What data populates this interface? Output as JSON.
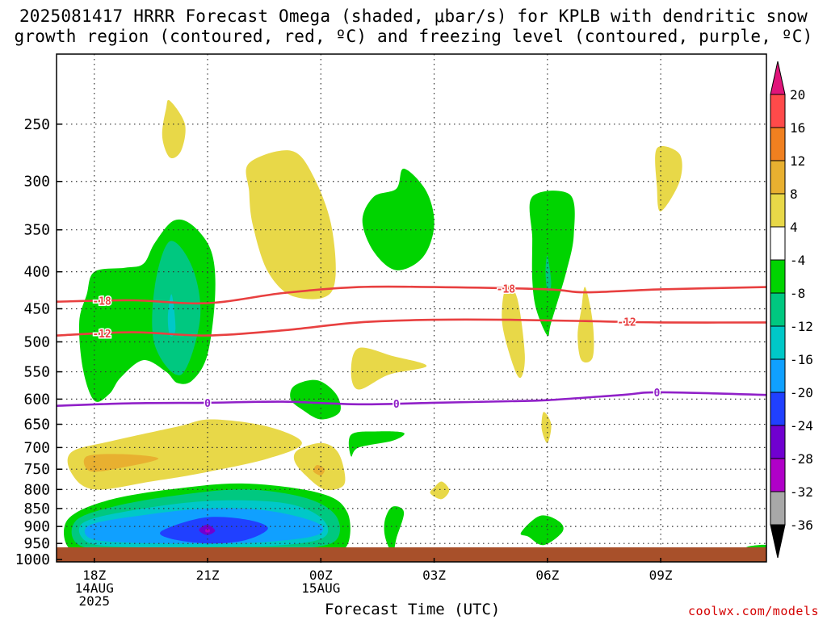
{
  "title_line1": "2025081417 HRRR Forecast Omega (shaded, μbar/s) for KPLB with dendritic snow",
  "title_line2": "growth region (contoured, red, ºC) and freezing level (contoured, purple, ºC)",
  "credit": "coolwx.com/models",
  "chart_data": {
    "type": "heatmap",
    "xlabel": "Forecast Time (UTC)",
    "ylabel": "",
    "y_log": true,
    "x_ticks": [
      {
        "hour": 18,
        "labels": [
          "18Z",
          "14AUG",
          "2025"
        ]
      },
      {
        "hour": 21,
        "labels": [
          "21Z"
        ]
      },
      {
        "hour": 24,
        "labels": [
          "00Z",
          "15AUG"
        ]
      },
      {
        "hour": 27,
        "labels": [
          "03Z"
        ]
      },
      {
        "hour": 30,
        "labels": [
          "06Z"
        ]
      },
      {
        "hour": 33,
        "labels": [
          "09Z"
        ]
      }
    ],
    "xlim": [
      17,
      35.8
    ],
    "y_ticks": [
      250,
      300,
      350,
      400,
      450,
      500,
      550,
      600,
      650,
      700,
      750,
      800,
      850,
      900,
      950,
      1000
    ],
    "ylim": [
      200,
      1010
    ],
    "colorbar": {
      "labels": [
        "20",
        "16",
        "12",
        "8",
        "4",
        "-4",
        "-8",
        "-12",
        "-16",
        "-20",
        "-24",
        "-28",
        "-32",
        "-36"
      ],
      "colors": [
        "#ff4a4a",
        "#f08020",
        "#e8b030",
        "#e8d848",
        "#ffffff",
        "#00d400",
        "#00c880",
        "#00c8c8",
        "#10a0ff",
        "#2040ff",
        "#7000d0",
        "#b000c8",
        "#a8a8a8"
      ],
      "top_arrow_color": "#e0147a",
      "bottom_arrow_color": "#000000"
    },
    "contours": [
      {
        "name": "-18",
        "color": "#e84040",
        "points": [
          [
            17,
            440
          ],
          [
            19,
            438
          ],
          [
            21,
            442
          ],
          [
            23,
            428
          ],
          [
            25,
            420
          ],
          [
            27,
            420
          ],
          [
            30,
            423
          ],
          [
            31,
            427
          ],
          [
            33,
            423
          ],
          [
            35.8,
            420
          ]
        ]
      },
      {
        "name": "-12",
        "color": "#e84040",
        "points": [
          [
            17,
            490
          ],
          [
            19,
            485
          ],
          [
            21,
            490
          ],
          [
            23,
            482
          ],
          [
            25,
            470
          ],
          [
            27,
            466
          ],
          [
            29,
            466
          ],
          [
            31,
            468
          ],
          [
            33,
            470
          ],
          [
            35.8,
            470
          ]
        ]
      },
      {
        "name": "0",
        "color": "#9020c8",
        "points": [
          [
            17,
            613
          ],
          [
            19,
            608
          ],
          [
            21,
            607
          ],
          [
            23,
            605
          ],
          [
            25,
            610
          ],
          [
            27,
            607
          ],
          [
            29,
            604
          ],
          [
            30,
            602
          ],
          [
            32,
            592
          ],
          [
            33,
            587
          ],
          [
            35.8,
            592
          ]
        ]
      }
    ],
    "omega_regions": [
      {
        "kind": "up",
        "color": "#00d400",
        "points": [
          [
            18.0,
            603
          ],
          [
            17.7,
            545
          ],
          [
            17.6,
            470
          ],
          [
            17.8,
            430
          ],
          [
            18.0,
            400
          ],
          [
            18.8,
            395
          ],
          [
            19.3,
            390
          ],
          [
            19.6,
            365
          ],
          [
            20.1,
            340
          ],
          [
            20.6,
            345
          ],
          [
            21.1,
            375
          ],
          [
            21.2,
            430
          ],
          [
            21.0,
            520
          ],
          [
            20.6,
            565
          ],
          [
            20.2,
            570
          ],
          [
            19.9,
            550
          ],
          [
            19.3,
            530
          ],
          [
            18.7,
            560
          ],
          [
            18.4,
            590
          ]
        ]
      },
      {
        "kind": "up",
        "color": "#00c880",
        "points": [
          [
            20.0,
            363
          ],
          [
            20.6,
            395
          ],
          [
            20.8,
            465
          ],
          [
            20.3,
            555
          ],
          [
            19.6,
            505
          ],
          [
            19.6,
            420
          ]
        ]
      },
      {
        "kind": "up",
        "color": "#00c8c8",
        "points": [
          [
            20.05,
            430
          ],
          [
            20.15,
            480
          ],
          [
            20.0,
            490
          ],
          [
            19.95,
            460
          ]
        ]
      },
      {
        "kind": "down",
        "color": "#e8d848",
        "points": [
          [
            20.0,
            232
          ],
          [
            20.4,
            250
          ],
          [
            20.3,
            272
          ],
          [
            20.0,
            278
          ],
          [
            19.8,
            260
          ],
          [
            19.9,
            238
          ]
        ]
      },
      {
        "kind": "down",
        "color": "#e8d848",
        "points": [
          [
            22.1,
            283
          ],
          [
            23.2,
            272
          ],
          [
            23.8,
            295
          ],
          [
            24.3,
            350
          ],
          [
            24.3,
            425
          ],
          [
            23.3,
            433
          ],
          [
            22.6,
            400
          ],
          [
            22.2,
            345
          ],
          [
            22.1,
            310
          ]
        ]
      },
      {
        "kind": "up",
        "color": "#00d400",
        "points": [
          [
            26.0,
            307
          ],
          [
            26.2,
            288
          ],
          [
            26.8,
            310
          ],
          [
            27.0,
            345
          ],
          [
            26.7,
            382
          ],
          [
            26.0,
            398
          ],
          [
            25.4,
            375
          ],
          [
            25.1,
            340
          ],
          [
            25.4,
            315
          ]
        ]
      },
      {
        "kind": "down",
        "color": "#e8d848",
        "points": [
          [
            25.0,
            510
          ],
          [
            25.9,
            523
          ],
          [
            26.8,
            540
          ],
          [
            25.8,
            555
          ],
          [
            25.0,
            582
          ],
          [
            24.8,
            550
          ]
        ]
      },
      {
        "kind": "up",
        "color": "#00d400",
        "points": [
          [
            23.3,
            575
          ],
          [
            23.9,
            565
          ],
          [
            24.4,
            590
          ],
          [
            24.5,
            625
          ],
          [
            24.0,
            640
          ],
          [
            23.5,
            620
          ],
          [
            23.2,
            600
          ]
        ]
      },
      {
        "kind": "up",
        "color": "#00d400",
        "points": [
          [
            24.8,
            672
          ],
          [
            25.5,
            665
          ],
          [
            26.2,
            668
          ],
          [
            25.9,
            685
          ],
          [
            25.0,
            700
          ],
          [
            24.8,
            720
          ]
        ]
      },
      {
        "kind": "down",
        "color": "#e8d848",
        "points": [
          [
            27.0,
            795
          ],
          [
            27.2,
            780
          ],
          [
            27.4,
            802
          ],
          [
            27.2,
            825
          ],
          [
            26.9,
            810
          ]
        ]
      },
      {
        "kind": "up",
        "color": "#00d400",
        "points": [
          [
            25.9,
            845
          ],
          [
            26.2,
            860
          ],
          [
            26.0,
            935
          ],
          [
            25.9,
            980
          ],
          [
            25.7,
            930
          ],
          [
            25.7,
            880
          ]
        ]
      },
      {
        "kind": "up",
        "color": "#00d400",
        "points": [
          [
            29.6,
            315
          ],
          [
            30.6,
            313
          ],
          [
            30.7,
            355
          ],
          [
            30.5,
            400
          ],
          [
            30.1,
            470
          ],
          [
            30.0,
            490
          ],
          [
            29.7,
            450
          ],
          [
            29.6,
            410
          ],
          [
            29.6,
            360
          ]
        ]
      },
      {
        "kind": "up",
        "color": "#00c880",
        "points": [
          [
            30.0,
            380
          ],
          [
            30.1,
            415
          ],
          [
            30.0,
            425
          ],
          [
            29.95,
            400
          ]
        ]
      },
      {
        "kind": "down",
        "color": "#e8d848",
        "points": [
          [
            28.9,
            420
          ],
          [
            29.2,
            435
          ],
          [
            29.4,
            520
          ],
          [
            29.3,
            560
          ],
          [
            29.1,
            540
          ],
          [
            28.8,
            470
          ]
        ]
      },
      {
        "kind": "down",
        "color": "#e8d848",
        "points": [
          [
            31.0,
            420
          ],
          [
            31.2,
            470
          ],
          [
            31.2,
            525
          ],
          [
            30.9,
            530
          ],
          [
            30.8,
            490
          ],
          [
            30.9,
            450
          ]
        ]
      },
      {
        "kind": "down",
        "color": "#e8d848",
        "points": [
          [
            32.9,
            270
          ],
          [
            33.5,
            275
          ],
          [
            33.5,
            300
          ],
          [
            33.0,
            330
          ],
          [
            32.9,
            305
          ]
        ]
      },
      {
        "kind": "down",
        "color": "#e8d848",
        "points": [
          [
            29.9,
            625
          ],
          [
            30.1,
            650
          ],
          [
            30.0,
            690
          ],
          [
            29.85,
            660
          ]
        ]
      },
      {
        "kind": "up",
        "color": "#00d400",
        "points": [
          [
            29.8,
            870
          ],
          [
            30.3,
            885
          ],
          [
            30.4,
            915
          ],
          [
            29.9,
            955
          ],
          [
            29.5,
            930
          ],
          [
            29.3,
            918
          ]
        ]
      },
      {
        "kind": "up",
        "color": "#00d400",
        "points": [
          [
            35.3,
            960
          ],
          [
            35.8,
            955
          ],
          [
            35.8,
            975
          ],
          [
            35.3,
            972
          ]
        ]
      },
      {
        "kind": "down",
        "color": "#e8d848",
        "points": [
          [
            17.4,
            710
          ],
          [
            18.5,
            685
          ],
          [
            20.2,
            655
          ],
          [
            21.1,
            640
          ],
          [
            22.6,
            655
          ],
          [
            23.5,
            690
          ],
          [
            22.6,
            725
          ],
          [
            20.8,
            760
          ],
          [
            19.5,
            780
          ],
          [
            18.0,
            800
          ],
          [
            17.4,
            760
          ]
        ]
      },
      {
        "kind": "down",
        "color": "#e8b030",
        "points": [
          [
            17.8,
            720
          ],
          [
            18.8,
            715
          ],
          [
            19.7,
            725
          ],
          [
            18.8,
            745
          ],
          [
            17.9,
            755
          ]
        ]
      },
      {
        "kind": "down",
        "color": "#e8d848",
        "points": [
          [
            23.4,
            705
          ],
          [
            24.0,
            690
          ],
          [
            24.4,
            705
          ],
          [
            24.6,
            745
          ],
          [
            24.6,
            790
          ],
          [
            24.1,
            800
          ],
          [
            23.6,
            765
          ],
          [
            23.3,
            730
          ]
        ]
      },
      {
        "kind": "down",
        "color": "#e8b030",
        "points": [
          [
            23.9,
            740
          ],
          [
            24.1,
            750
          ],
          [
            24.0,
            765
          ],
          [
            23.8,
            755
          ]
        ]
      },
      {
        "kind": "up",
        "color": "#00d400",
        "points": [
          [
            17.3,
            880
          ],
          [
            18.3,
            830
          ],
          [
            20.0,
            800
          ],
          [
            22.0,
            785
          ],
          [
            24.0,
            810
          ],
          [
            24.7,
            860
          ],
          [
            24.7,
            955
          ],
          [
            24.1,
            975
          ],
          [
            22.0,
            980
          ],
          [
            20.0,
            980
          ],
          [
            18.0,
            980
          ],
          [
            17.3,
            960
          ]
        ]
      },
      {
        "kind": "up",
        "color": "#00c880",
        "points": [
          [
            17.5,
            885
          ],
          [
            18.5,
            845
          ],
          [
            20.2,
            815
          ],
          [
            22.0,
            800
          ],
          [
            23.6,
            822
          ],
          [
            24.4,
            870
          ],
          [
            24.4,
            940
          ],
          [
            23.5,
            965
          ],
          [
            21.5,
            972
          ],
          [
            19.0,
            972
          ],
          [
            17.6,
            955
          ]
        ]
      },
      {
        "kind": "up",
        "color": "#00c8c8",
        "points": [
          [
            17.7,
            890
          ],
          [
            19.0,
            855
          ],
          [
            21.0,
            830
          ],
          [
            23.0,
            835
          ],
          [
            24.0,
            875
          ],
          [
            24.1,
            930
          ],
          [
            23.0,
            955
          ],
          [
            21.0,
            960
          ],
          [
            18.8,
            960
          ],
          [
            17.8,
            945
          ]
        ]
      },
      {
        "kind": "up",
        "color": "#10a0ff",
        "points": [
          [
            17.9,
            895
          ],
          [
            19.3,
            868
          ],
          [
            21.0,
            850
          ],
          [
            22.6,
            856
          ],
          [
            23.9,
            890
          ],
          [
            23.9,
            925
          ],
          [
            22.6,
            945
          ],
          [
            21.0,
            950
          ],
          [
            19.0,
            948
          ],
          [
            17.9,
            935
          ]
        ]
      },
      {
        "kind": "up",
        "color": "#2040ff",
        "points": [
          [
            19.8,
            912
          ],
          [
            20.9,
            875
          ],
          [
            22.0,
            880
          ],
          [
            22.6,
            905
          ],
          [
            22.0,
            940
          ],
          [
            21.0,
            950
          ],
          [
            20.0,
            935
          ]
        ]
      },
      {
        "kind": "up",
        "color": "#7000d0",
        "points": [
          [
            20.8,
            905
          ],
          [
            21.0,
            895
          ],
          [
            21.2,
            912
          ],
          [
            21.0,
            925
          ],
          [
            20.8,
            915
          ]
        ]
      },
      {
        "kind": "up",
        "color": "#b000c8",
        "points": [
          [
            20.95,
            908
          ],
          [
            21.05,
            908
          ],
          [
            21.05,
            916
          ],
          [
            20.95,
            916
          ]
        ]
      }
    ]
  }
}
